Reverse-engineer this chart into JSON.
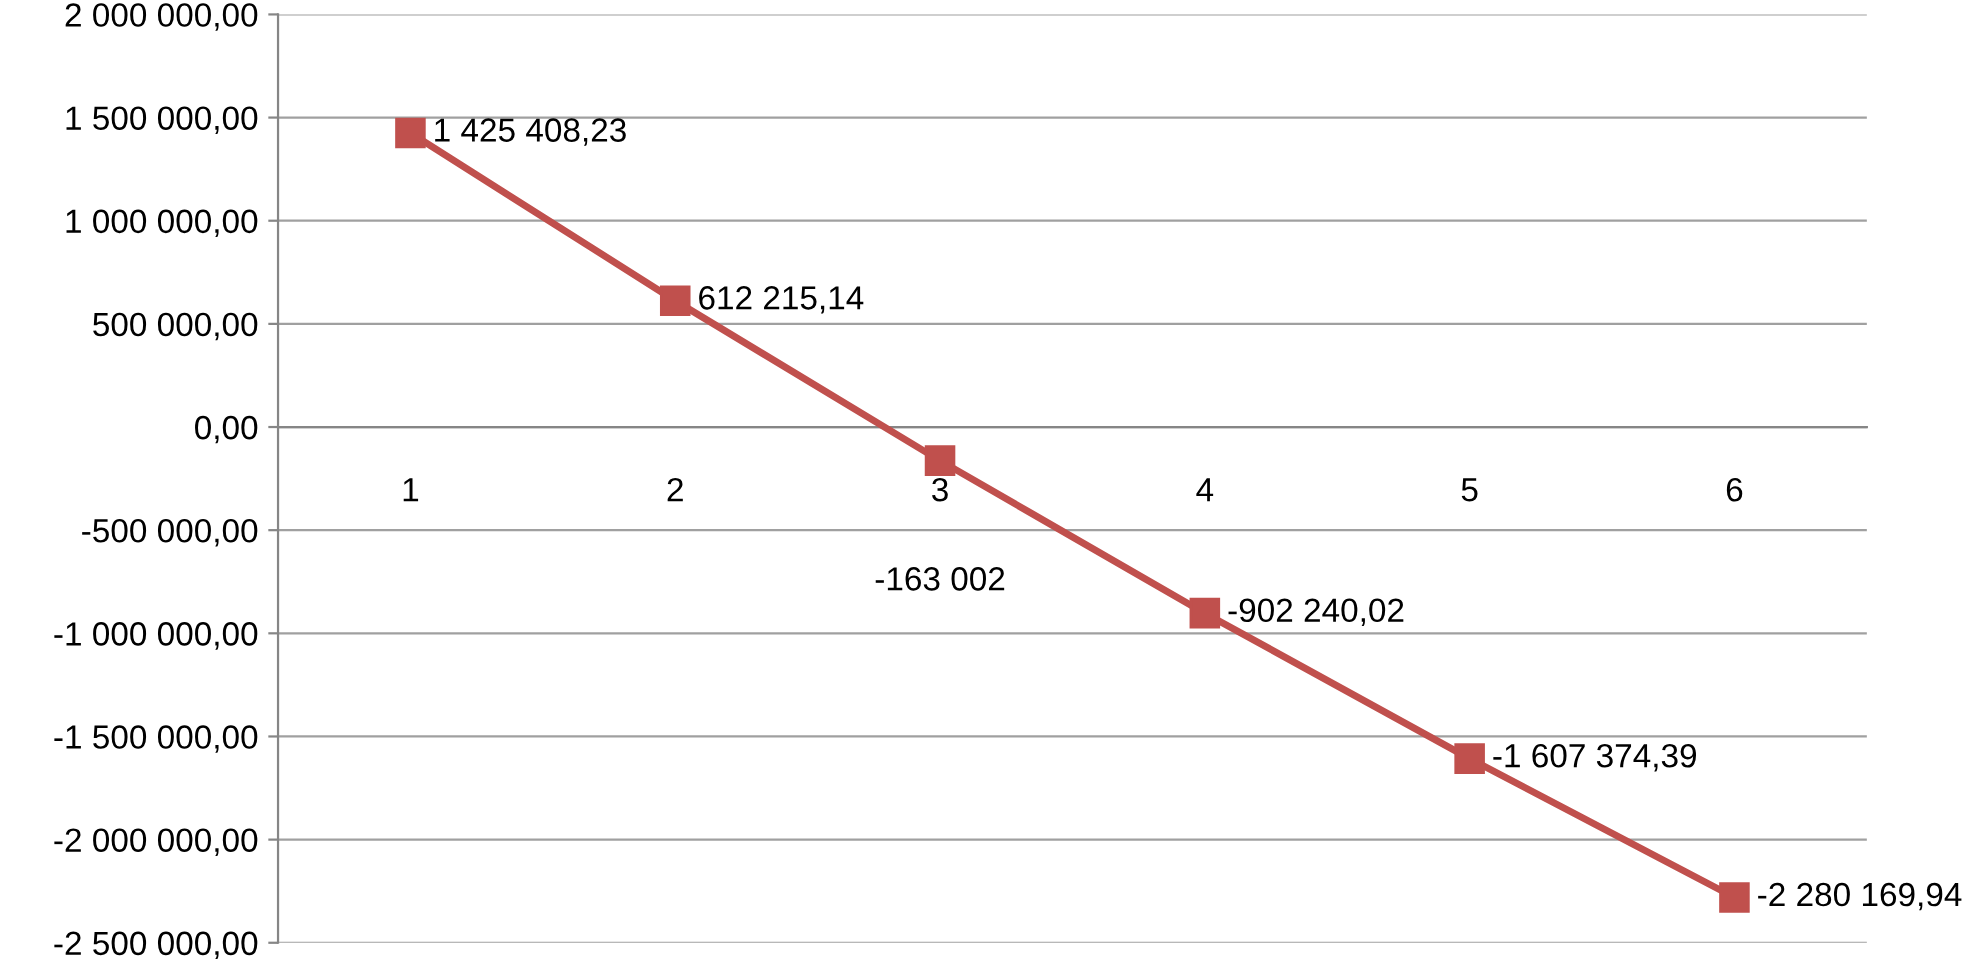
{
  "chart_data": {
    "type": "line",
    "categories": [
      "1",
      "2",
      "3",
      "4",
      "5",
      "6"
    ],
    "series": [
      {
        "color": "#c0504d",
        "values": [
          1425408.23,
          612215.14,
          -163002,
          -902240.02,
          -1607374.39,
          -2280169.94
        ],
        "value_labels": [
          "1 425 408,23",
          "612 215,14",
          "-163 002",
          "-902 240,02",
          "-1 607 374,39",
          "-2 280 169,94"
        ]
      }
    ],
    "ylim": [
      -2500000,
      2000000
    ],
    "yticks": [
      {
        "value": -2500000,
        "label": "-2 500 000,00"
      },
      {
        "value": -2000000,
        "label": "-2 000 000,00"
      },
      {
        "value": -1500000,
        "label": "-1 500 000,00"
      },
      {
        "value": -1000000,
        "label": "-1 000 000,00"
      },
      {
        "value": -500000,
        "label": "-500 000,00"
      },
      {
        "value": 0,
        "label": "0,00"
      },
      {
        "value": 500000,
        "label": "500 000,00"
      },
      {
        "value": 1000000,
        "label": "1 000 000,00"
      },
      {
        "value": 1500000,
        "label": "1 500 000,00"
      },
      {
        "value": 2000000,
        "label": "2 000 000,00"
      }
    ],
    "grid": "y",
    "marker": "square",
    "line_style": "solid",
    "legend": false
  }
}
